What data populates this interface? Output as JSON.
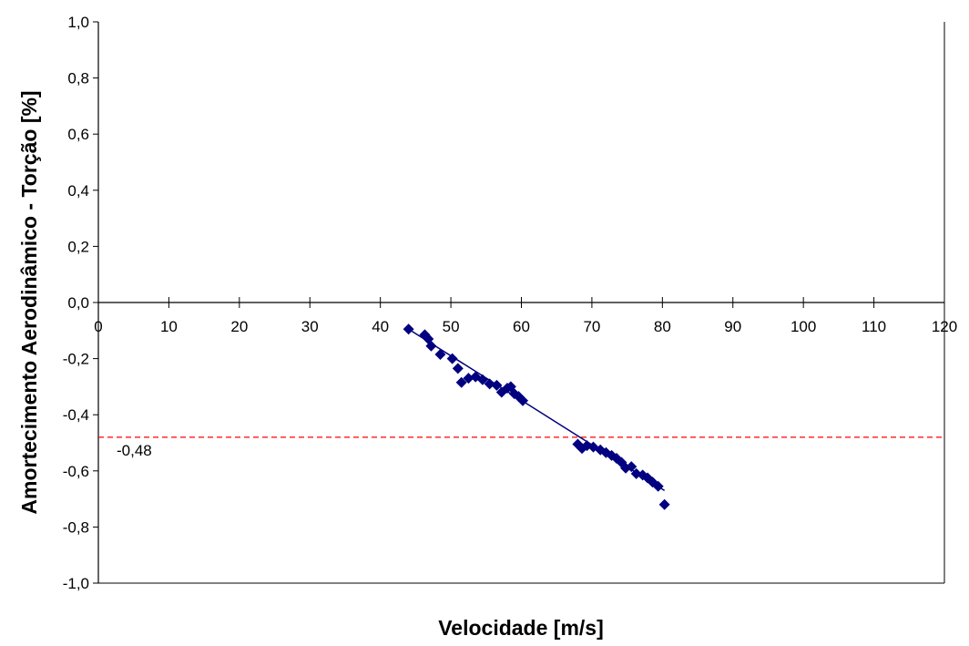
{
  "chart_data": {
    "type": "scatter",
    "title": "",
    "xlabel": "Velocidade [m/s]",
    "ylabel": "Amortecimento Aerodinâmico - Torção [%]",
    "xlim": [
      0,
      120
    ],
    "ylim": [
      -1.0,
      1.0
    ],
    "x_ticks": [
      0,
      10,
      20,
      30,
      40,
      50,
      60,
      70,
      80,
      90,
      100,
      110,
      120
    ],
    "x_tick_labels": [
      "0",
      "10",
      "20",
      "30",
      "40",
      "50",
      "60",
      "70",
      "80",
      "90",
      "100",
      "110",
      "120"
    ],
    "y_ticks": [
      1.0,
      0.8,
      0.6,
      0.4,
      0.2,
      0.0,
      -0.2,
      -0.4,
      -0.6,
      -0.8,
      -1.0
    ],
    "y_tick_labels": [
      "1,0",
      "0,8",
      "0,6",
      "0,4",
      "0,2",
      "0,0",
      "-0,2",
      "-0,4",
      "-0,6",
      "-0,8",
      "-1,0"
    ],
    "grid": false,
    "legend": "none",
    "series": [
      {
        "marker": "diamond",
        "color": "#000080",
        "points": [
          [
            44.0,
            -0.095
          ],
          [
            46.3,
            -0.115
          ],
          [
            46.8,
            -0.13
          ],
          [
            47.2,
            -0.155
          ],
          [
            48.5,
            -0.185
          ],
          [
            50.2,
            -0.2
          ],
          [
            51.0,
            -0.235
          ],
          [
            51.5,
            -0.285
          ],
          [
            52.5,
            -0.27
          ],
          [
            53.5,
            -0.265
          ],
          [
            54.5,
            -0.275
          ],
          [
            55.5,
            -0.29
          ],
          [
            56.5,
            -0.295
          ],
          [
            57.2,
            -0.32
          ],
          [
            58.0,
            -0.305
          ],
          [
            58.5,
            -0.3
          ],
          [
            59.0,
            -0.325
          ],
          [
            59.6,
            -0.335
          ],
          [
            60.2,
            -0.35
          ],
          [
            68.0,
            -0.505
          ],
          [
            68.6,
            -0.52
          ],
          [
            69.3,
            -0.51
          ],
          [
            70.2,
            -0.515
          ],
          [
            71.2,
            -0.525
          ],
          [
            72.0,
            -0.535
          ],
          [
            72.8,
            -0.545
          ],
          [
            73.5,
            -0.555
          ],
          [
            74.2,
            -0.57
          ],
          [
            74.8,
            -0.59
          ],
          [
            75.6,
            -0.585
          ],
          [
            76.3,
            -0.61
          ],
          [
            77.2,
            -0.615
          ],
          [
            77.9,
            -0.625
          ],
          [
            78.6,
            -0.64
          ],
          [
            79.4,
            -0.655
          ],
          [
            80.3,
            -0.72
          ]
        ]
      }
    ],
    "trendline": {
      "color": "#000080",
      "x": [
        44.0,
        80.3
      ],
      "y": [
        -0.095,
        -0.67
      ]
    },
    "reference_line": {
      "y": -0.48,
      "label": "-0,48",
      "color": "#ff0000",
      "style": "dashed"
    }
  }
}
